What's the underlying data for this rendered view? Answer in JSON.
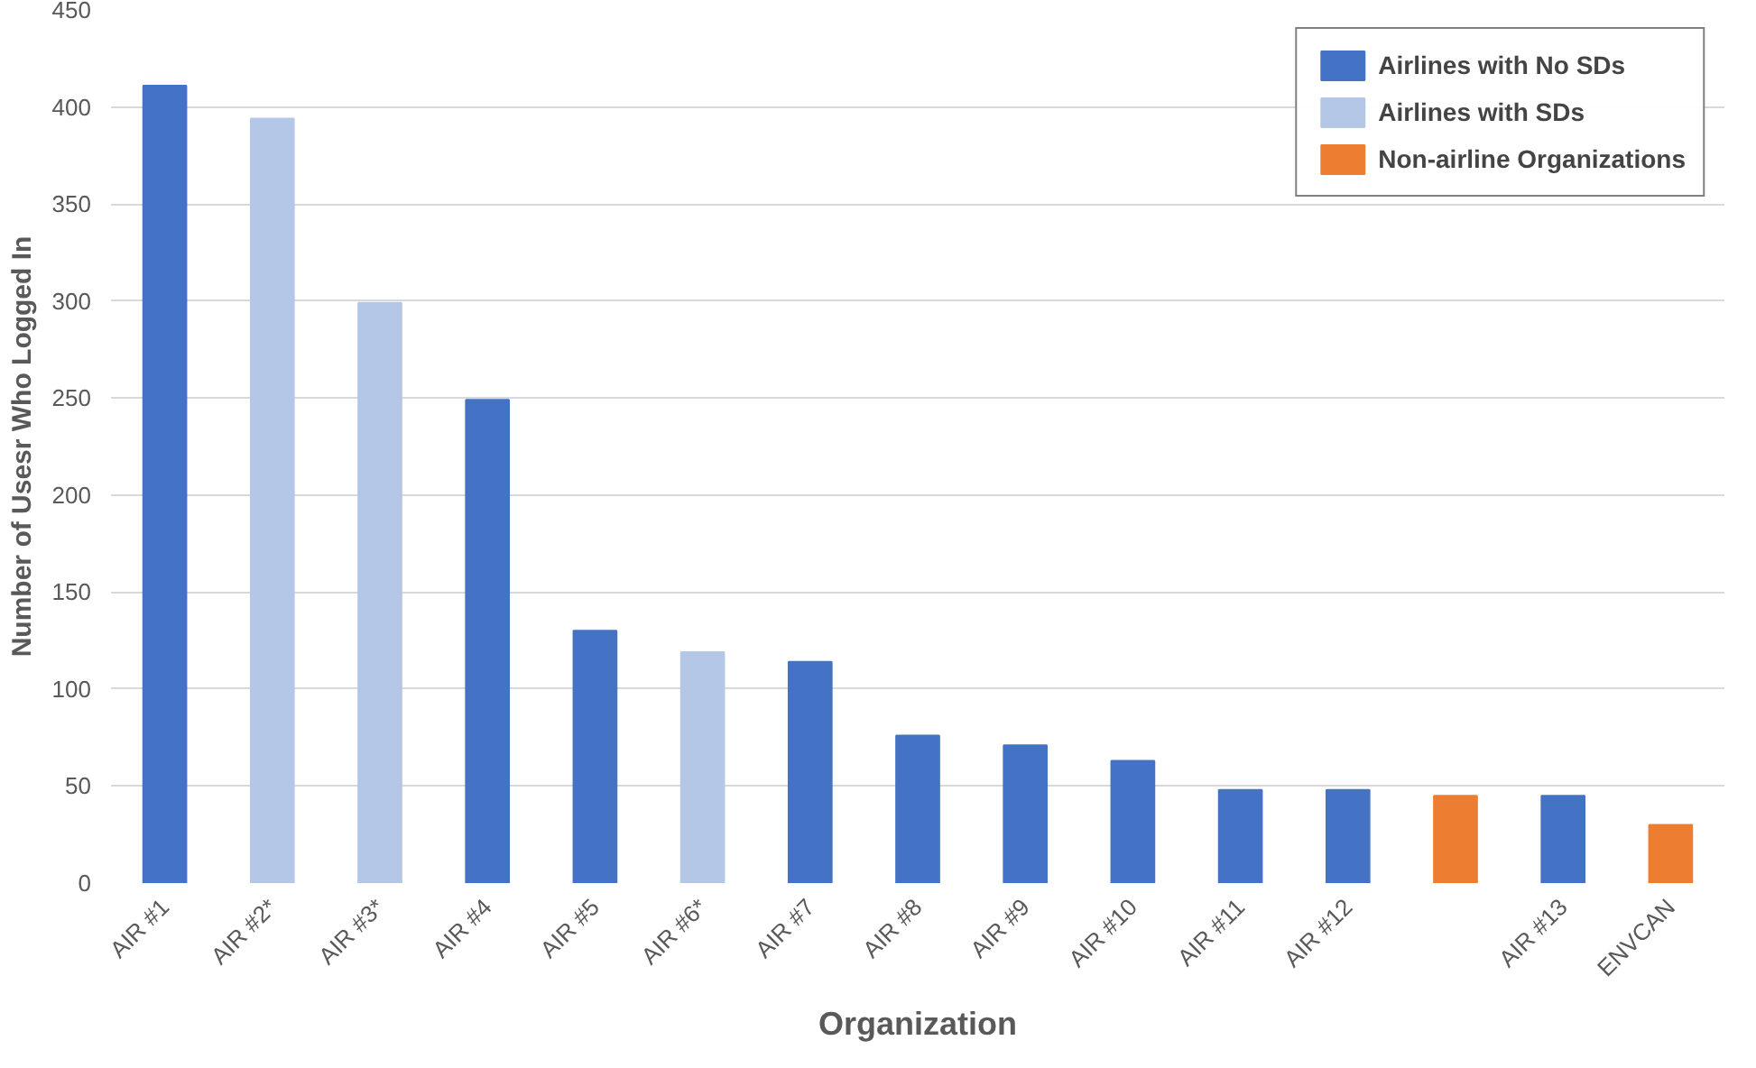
{
  "chart_data": {
    "type": "bar",
    "xlabel": "Organization",
    "ylabel": "Number of Usesr Who Logged In",
    "categories": [
      "AIR #1",
      "AIR #2*",
      "AIR #3*",
      "AIR #4",
      "AIR #5",
      "AIR #6*",
      "AIR #7",
      "AIR #8",
      "AIR #9",
      "AIR #10",
      "AIR #11",
      "AIR #12",
      null,
      "AIR #13",
      "ENVCAN"
    ],
    "series": [
      {
        "name": "Airlines with No SDs",
        "color": "#4472c4",
        "values": [
          411,
          null,
          null,
          249,
          130,
          null,
          114,
          76,
          71,
          63,
          48,
          48,
          null,
          45,
          null
        ]
      },
      {
        "name": "Airlines with SDs",
        "color": "#b4c7e7",
        "values": [
          null,
          394,
          299,
          null,
          null,
          119,
          null,
          null,
          null,
          null,
          null,
          null,
          null,
          null,
          null
        ]
      },
      {
        "name": "Non-airline Organizations",
        "color": "#ed7d31",
        "values": [
          null,
          null,
          null,
          null,
          null,
          null,
          null,
          null,
          null,
          null,
          null,
          null,
          45,
          null,
          30
        ]
      }
    ],
    "ylim": [
      0,
      450
    ],
    "yticks": [
      0,
      50,
      100,
      150,
      200,
      250,
      300,
      350,
      400,
      450
    ],
    "grid": "y",
    "legend": "top right"
  }
}
